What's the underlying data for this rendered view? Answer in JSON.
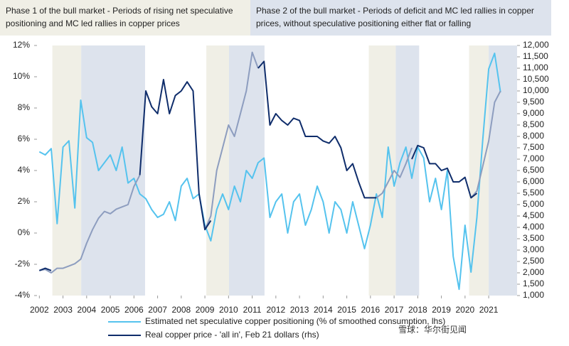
{
  "chart_data": {
    "type": "line",
    "annotations": [
      {
        "text": "Phase 1 of the bull market - Periods of rising net speculative positioning and MC led rallies in copper prices",
        "color": "#f0efe6"
      },
      {
        "text": "Phase 2 of the bull market - Periods of deficit and MC led rallies in copper prices, without speculative positioning either flat or falling",
        "color": "#dde3ed"
      }
    ],
    "bands": [
      {
        "start": 2002.55,
        "end": 2003.77,
        "color": "#f0efe6"
      },
      {
        "start": 2003.77,
        "end": 2006.47,
        "color": "#dde3ed"
      },
      {
        "start": 2009.06,
        "end": 2010.02,
        "color": "#f0efe6"
      },
      {
        "start": 2010.02,
        "end": 2011.52,
        "color": "#dde3ed"
      },
      {
        "start": 2015.93,
        "end": 2017.07,
        "color": "#f0efe6"
      },
      {
        "start": 2017.07,
        "end": 2018.06,
        "color": "#dde3ed"
      },
      {
        "start": 2020.17,
        "end": 2021.0,
        "color": "#f0efe6"
      },
      {
        "start": 2021.0,
        "end": 2022.2,
        "color": "#dde3ed"
      }
    ],
    "x": [
      2002,
      2002.25,
      2002.5,
      2002.75,
      2003,
      2003.25,
      2003.5,
      2003.75,
      2004,
      2004.25,
      2004.5,
      2004.75,
      2005,
      2005.25,
      2005.5,
      2005.75,
      2006,
      2006.25,
      2006.5,
      2006.75,
      2007,
      2007.25,
      2007.5,
      2007.75,
      2008,
      2008.25,
      2008.5,
      2008.75,
      2009,
      2009.25,
      2009.5,
      2009.75,
      2010,
      2010.25,
      2010.5,
      2010.75,
      2011,
      2011.25,
      2011.5,
      2011.75,
      2012,
      2012.25,
      2012.5,
      2012.75,
      2013,
      2013.25,
      2013.5,
      2013.75,
      2014,
      2014.25,
      2014.5,
      2014.75,
      2015,
      2015.25,
      2015.5,
      2015.75,
      2016,
      2016.25,
      2016.5,
      2016.75,
      2017,
      2017.25,
      2017.5,
      2017.75,
      2018,
      2018.25,
      2018.5,
      2018.75,
      2019,
      2019.25,
      2019.5,
      2019.75,
      2020,
      2020.25,
      2020.5,
      2020.75,
      2021,
      2021.25,
      2021.5
    ],
    "series": [
      {
        "name": "Estimated net speculative copper positioning (% of smoothed consumption, lhs)",
        "color": "#55c3ee",
        "values": [
          5.2,
          5.0,
          5.4,
          0.6,
          5.5,
          5.9,
          1.6,
          8.5,
          6.1,
          5.8,
          4.0,
          4.5,
          5.0,
          4.0,
          5.5,
          3.2,
          3.5,
          2.5,
          2.2,
          1.5,
          1.0,
          1.2,
          2.0,
          0.8,
          3.0,
          3.5,
          2.2,
          2.5,
          0.5,
          -0.5,
          1.5,
          2.5,
          1.5,
          3.0,
          2.0,
          4.0,
          3.5,
          4.5,
          4.8,
          1.0,
          2.0,
          2.5,
          0.0,
          2.0,
          2.5,
          0.5,
          1.5,
          3.0,
          2.0,
          0.0,
          2.0,
          1.5,
          0.0,
          2.0,
          0.5,
          -1.0,
          0.5,
          2.5,
          1.0,
          5.5,
          3.0,
          4.5,
          5.5,
          3.5,
          5.5,
          4.8,
          2.0,
          3.5,
          1.5,
          4.0,
          -1.5,
          -3.6,
          0.5,
          -2.5,
          1.0,
          6.0,
          10.5,
          11.5,
          9.0
        ]
      },
      {
        "color": "#8d9dbf",
        "axis": "y2",
        "values": [
          2100,
          2150,
          2000,
          2200,
          2200,
          2300,
          2400,
          2600,
          3300,
          3900,
          4400,
          4700,
          4600,
          4800,
          4900,
          5000,
          5800,
          6300,
          null,
          null,
          null,
          null,
          null,
          null,
          null,
          null,
          null,
          null,
          3900,
          4500,
          6500,
          7500,
          8500,
          8000,
          9000,
          10000,
          11700,
          11000,
          null,
          null,
          null,
          null,
          null,
          null,
          null,
          null,
          null,
          null,
          null,
          null,
          null,
          null,
          null,
          null,
          null,
          null,
          null,
          5300,
          5500,
          6000,
          6500,
          6200,
          6800,
          7500,
          null,
          null,
          null,
          null,
          null,
          null,
          null,
          null,
          null,
          5300,
          5600,
          6700,
          7800,
          9500,
          10000
        ]
      },
      {
        "name": "Real copper price - 'all in', Feb 21 dollars (rhs)",
        "color": "#0f2d6b",
        "axis": "y2",
        "values": [
          2100,
          2200,
          2100,
          null,
          null,
          null,
          null,
          null,
          null,
          null,
          null,
          null,
          null,
          null,
          null,
          null,
          null,
          6300,
          10000,
          9300,
          9000,
          10500,
          9000,
          9800,
          10000,
          10400,
          10000,
          5500,
          3900,
          4300,
          null,
          null,
          null,
          null,
          null,
          null,
          null,
          11000,
          11300,
          8500,
          9000,
          8700,
          8500,
          8800,
          8700,
          8000,
          8000,
          8000,
          7800,
          7700,
          8000,
          7500,
          6500,
          6800,
          6000,
          5300,
          5300,
          5300,
          null,
          null,
          null,
          null,
          null,
          7000,
          7600,
          7500,
          6800,
          6800,
          6500,
          6600,
          6000,
          6000,
          6200,
          5300,
          5500,
          null,
          null,
          null,
          null
        ]
      }
    ],
    "xlim": [
      2001.9,
      2022.2
    ],
    "xticks": [
      2002,
      2003,
      2004,
      2005,
      2006,
      2007,
      2008,
      2009,
      2010,
      2011,
      2012,
      2013,
      2014,
      2015,
      2016,
      2017,
      2018,
      2019,
      2020,
      2021
    ],
    "ylim": [
      -4,
      12
    ],
    "yticks": [
      {
        "value": -4,
        "label": "-4%"
      },
      {
        "value": -2,
        "label": "-2%"
      },
      {
        "value": 0,
        "label": "0%"
      },
      {
        "value": 2,
        "label": "2%"
      },
      {
        "value": 4,
        "label": "4%"
      },
      {
        "value": 6,
        "label": "6%"
      },
      {
        "value": 8,
        "label": "8%"
      },
      {
        "value": 10,
        "label": "10%"
      },
      {
        "value": 12,
        "label": "12%"
      }
    ],
    "y2lim": [
      1000,
      12000
    ],
    "y2ticks": [
      {
        "value": 1000,
        "label": "1,000"
      },
      {
        "value": 1500,
        "label": "1,500"
      },
      {
        "value": 2000,
        "label": "2,000"
      },
      {
        "value": 2500,
        "label": "2,500"
      },
      {
        "value": 3000,
        "label": "3,000"
      },
      {
        "value": 3500,
        "label": "3,500"
      },
      {
        "value": 4000,
        "label": "4,000"
      },
      {
        "value": 4500,
        "label": "4,500"
      },
      {
        "value": 5000,
        "label": "5,000"
      },
      {
        "value": 5500,
        "label": "5,500"
      },
      {
        "value": 6000,
        "label": "6,000"
      },
      {
        "value": 6500,
        "label": "6,500"
      },
      {
        "value": 7000,
        "label": "7,000"
      },
      {
        "value": 7500,
        "label": "7,500"
      },
      {
        "value": 8000,
        "label": "8,000"
      },
      {
        "value": 8500,
        "label": "8,500"
      },
      {
        "value": 9000,
        "label": "9,000"
      },
      {
        "value": 9500,
        "label": "9,500"
      },
      {
        "value": 10000,
        "label": "10,000"
      },
      {
        "value": 10500,
        "label": "10,500"
      },
      {
        "value": 11000,
        "label": "11,000"
      },
      {
        "value": 11500,
        "label": "11,500"
      },
      {
        "value": 12000,
        "label": "12,000"
      }
    ],
    "watermark": "雪球：华尔街见闻"
  }
}
